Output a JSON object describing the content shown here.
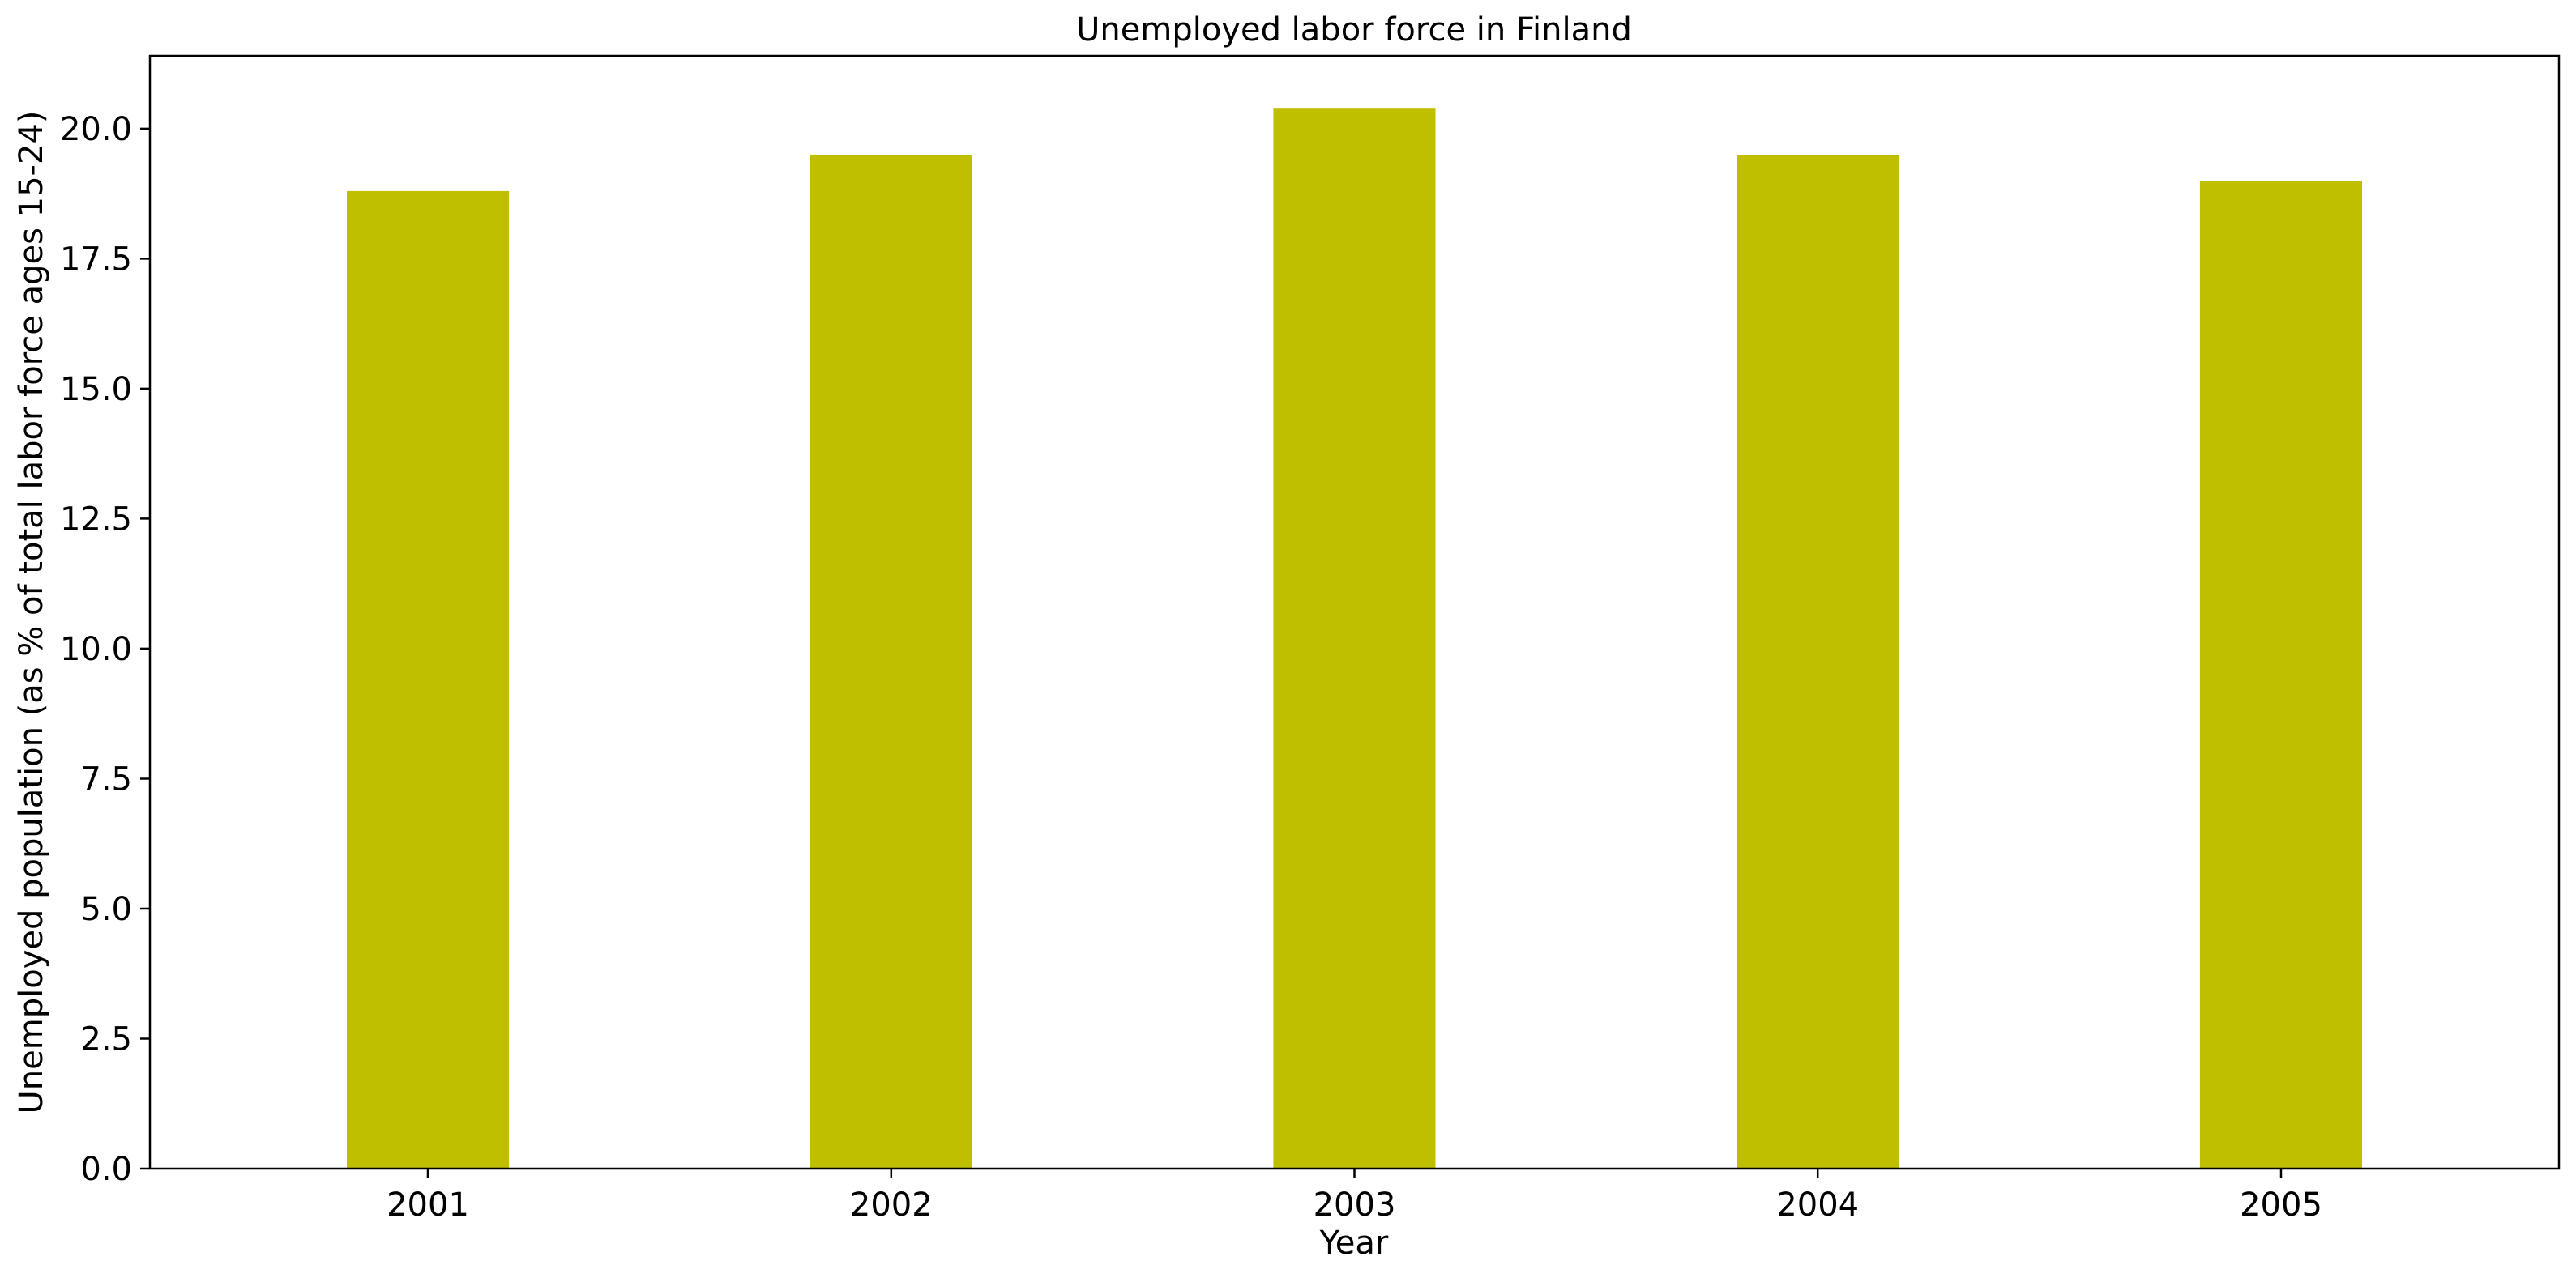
{
  "chart_data": {
    "type": "bar",
    "title": "Unemployed labor force in Finland",
    "xlabel": "Year",
    "ylabel": "Unemployed population (as % of total labor force ages 15-24)",
    "categories": [
      "2001",
      "2002",
      "2003",
      "2004",
      "2005"
    ],
    "series": [
      {
        "values": [
          18.8,
          19.5,
          20.4,
          19.5,
          19.0
        ],
        "color": "#bfbf00"
      }
    ],
    "ylim": [
      0,
      21.4
    ],
    "yticks": [
      "0.0",
      "2.5",
      "5.0",
      "7.5",
      "10.0",
      "12.5",
      "15.0",
      "17.5",
      "20.0"
    ],
    "grid": false,
    "legend": "none"
  }
}
